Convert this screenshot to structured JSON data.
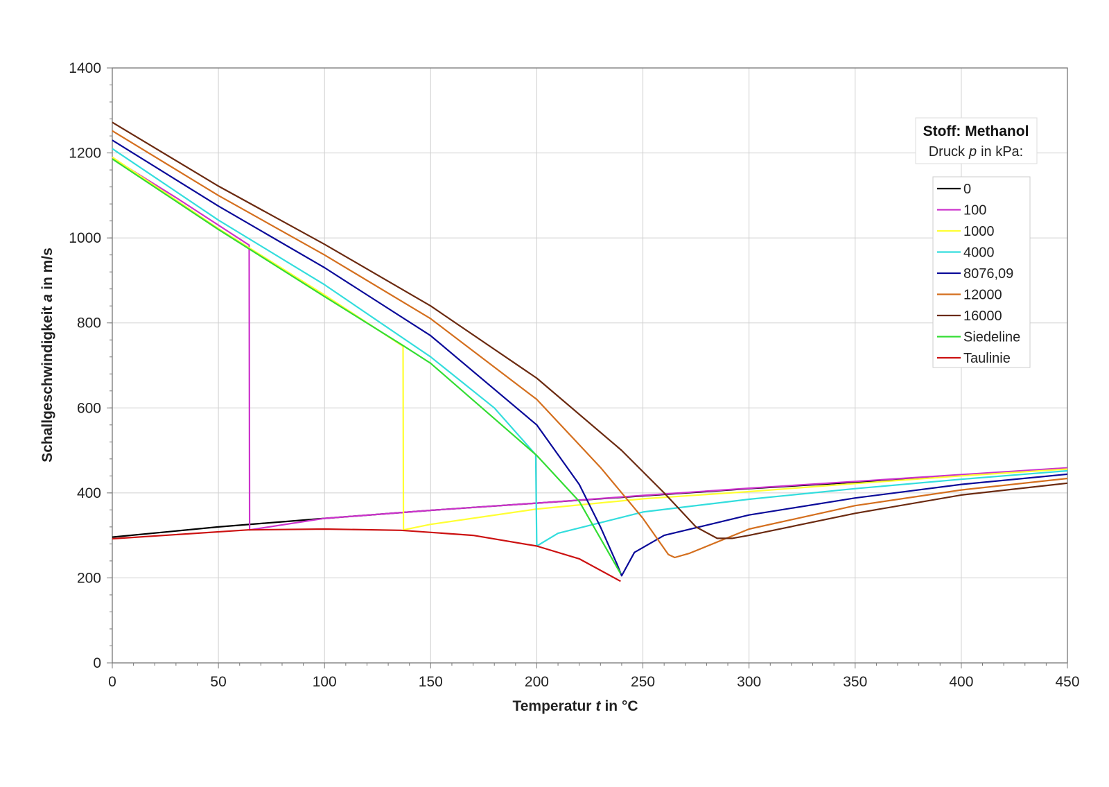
{
  "chart_data": {
    "type": "line",
    "xlabel": {
      "text": "Temperatur",
      "symbol": "t",
      "unit": "in °C"
    },
    "ylabel": {
      "text": "Schallgeschwindigkeit",
      "symbol": "a",
      "unit": "in m/s"
    },
    "xlim": [
      0,
      450
    ],
    "ylim": [
      0,
      1400
    ],
    "x_ticks": [
      0,
      50,
      100,
      150,
      200,
      250,
      300,
      350,
      400,
      450
    ],
    "y_ticks": [
      0,
      200,
      400,
      600,
      800,
      1000,
      1200,
      1400
    ],
    "x_tick_labels": [
      "0",
      "50",
      "100",
      "150",
      "200",
      "250",
      "300",
      "350",
      "400",
      "450"
    ],
    "y_tick_labels": [
      "0",
      "200",
      "400",
      "600",
      "800",
      "1000",
      "1200",
      "1400"
    ],
    "grid": true,
    "info_box": {
      "title": "Stoff: Methanol",
      "subtitle_text": "Druck",
      "subtitle_symbol": "p",
      "subtitle_unit": "in kPa:"
    },
    "legend_position": "right",
    "series": [
      {
        "name": "0",
        "color": "#000000",
        "points": [
          [
            0,
            296
          ],
          [
            50,
            320
          ],
          [
            100,
            340
          ],
          [
            150,
            359
          ],
          [
            200,
            376
          ],
          [
            250,
            393
          ],
          [
            300,
            410
          ],
          [
            350,
            425
          ],
          [
            400,
            441
          ],
          [
            450,
            457
          ]
        ]
      },
      {
        "name": "100",
        "color": "#cc33cc",
        "points": [
          [
            0,
            1188
          ],
          [
            30,
            1095
          ],
          [
            64.5,
            983
          ],
          [
            64.7,
            313
          ],
          [
            100,
            340
          ],
          [
            150,
            359
          ],
          [
            200,
            376
          ],
          [
            250,
            394
          ],
          [
            300,
            411
          ],
          [
            350,
            427
          ],
          [
            400,
            443
          ],
          [
            450,
            459
          ]
        ]
      },
      {
        "name": "1000",
        "color": "#ffff33",
        "points": [
          [
            0,
            1190
          ],
          [
            50,
            1022
          ],
          [
            100,
            866
          ],
          [
            137,
            745
          ],
          [
            137.2,
            313
          ],
          [
            150,
            326
          ],
          [
            200,
            362
          ],
          [
            250,
            386
          ],
          [
            300,
            403
          ],
          [
            350,
            422
          ],
          [
            400,
            440
          ],
          [
            450,
            456
          ]
        ]
      },
      {
        "name": "4000",
        "color": "#33dddd",
        "points": [
          [
            0,
            1210
          ],
          [
            50,
            1042
          ],
          [
            100,
            890
          ],
          [
            150,
            720
          ],
          [
            180,
            600
          ],
          [
            199.5,
            490
          ],
          [
            200,
            275
          ],
          [
            210,
            305
          ],
          [
            250,
            355
          ],
          [
            300,
            385
          ],
          [
            350,
            410
          ],
          [
            400,
            432
          ],
          [
            450,
            452
          ]
        ]
      },
      {
        "name": "8076,09",
        "color": "#0a0a99",
        "points": [
          [
            0,
            1230
          ],
          [
            50,
            1075
          ],
          [
            100,
            930
          ],
          [
            150,
            770
          ],
          [
            200,
            560
          ],
          [
            220,
            420
          ],
          [
            230,
            320
          ],
          [
            238,
            230
          ],
          [
            240,
            205
          ],
          [
            246,
            260
          ],
          [
            260,
            300
          ],
          [
            300,
            348
          ],
          [
            350,
            388
          ],
          [
            400,
            420
          ],
          [
            450,
            444
          ]
        ]
      },
      {
        "name": "12000",
        "color": "#d46f1e",
        "points": [
          [
            0,
            1252
          ],
          [
            50,
            1100
          ],
          [
            100,
            960
          ],
          [
            150,
            810
          ],
          [
            200,
            620
          ],
          [
            230,
            460
          ],
          [
            250,
            340
          ],
          [
            262,
            255
          ],
          [
            265,
            248
          ],
          [
            272,
            258
          ],
          [
            300,
            315
          ],
          [
            350,
            370
          ],
          [
            400,
            407
          ],
          [
            450,
            434
          ]
        ]
      },
      {
        "name": "16000",
        "color": "#6b2a10",
        "points": [
          [
            0,
            1272
          ],
          [
            50,
            1122
          ],
          [
            100,
            985
          ],
          [
            150,
            840
          ],
          [
            200,
            670
          ],
          [
            240,
            500
          ],
          [
            260,
            400
          ],
          [
            275,
            320
          ],
          [
            285,
            293
          ],
          [
            292,
            293
          ],
          [
            300,
            300
          ],
          [
            350,
            352
          ],
          [
            400,
            395
          ],
          [
            450,
            423
          ]
        ]
      },
      {
        "name": "Siedeline",
        "color": "#33dd33",
        "points": [
          [
            0,
            1186
          ],
          [
            50,
            1020
          ],
          [
            100,
            862
          ],
          [
            136,
            750
          ],
          [
            150,
            705
          ],
          [
            200,
            488
          ],
          [
            220,
            380
          ],
          [
            239.5,
            210
          ]
        ]
      },
      {
        "name": "Taulinie",
        "color": "#cc1111",
        "points": [
          [
            0,
            292
          ],
          [
            64,
            313
          ],
          [
            100,
            315
          ],
          [
            136,
            312
          ],
          [
            170,
            300
          ],
          [
            200,
            275
          ],
          [
            220,
            245
          ],
          [
            239.5,
            192
          ]
        ]
      }
    ]
  }
}
